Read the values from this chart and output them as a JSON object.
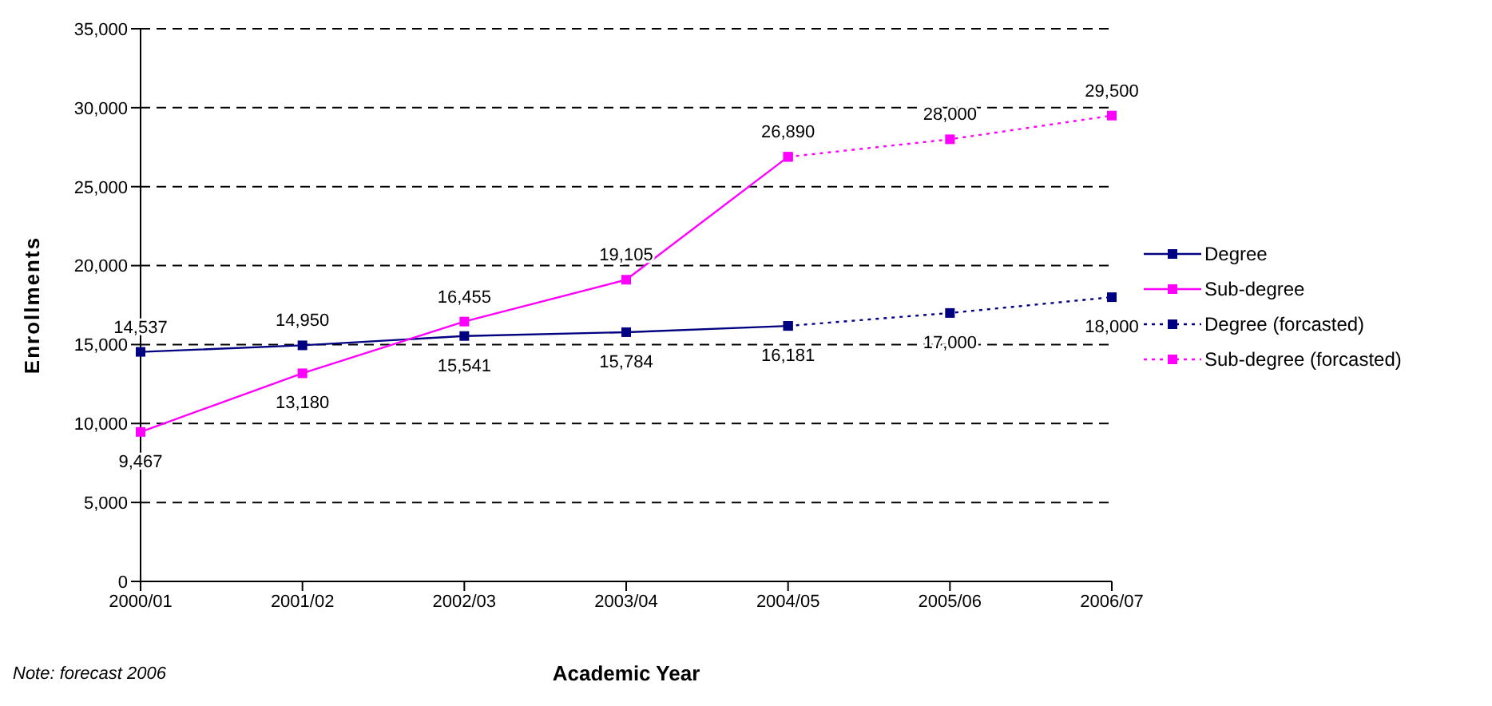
{
  "chart_data": {
    "type": "line",
    "xlabel": "Academic Year",
    "ylabel": "Enrollments",
    "categories": [
      "2000/01",
      "2001/02",
      "2002/03",
      "2003/04",
      "2004/05",
      "2005/06",
      "2006/07"
    ],
    "series": [
      {
        "name": "Degree",
        "color": "#000080",
        "line_style": "solid",
        "values": [
          14537,
          14950,
          15541,
          15784,
          16181,
          null,
          null
        ],
        "value_labels": [
          "14,537",
          "14,950",
          "15,541",
          "15,784",
          "16,181",
          null,
          null
        ]
      },
      {
        "name": "Sub-degree",
        "color": "#ff00ff",
        "line_style": "solid",
        "values": [
          9467,
          13180,
          16455,
          19105,
          26890,
          null,
          null
        ],
        "value_labels": [
          "9,467",
          "13,180",
          "16,455",
          "19,105",
          "26,890",
          null,
          null
        ]
      },
      {
        "name": "Degree (forcasted)",
        "color": "#000080",
        "line_style": "dotted",
        "values": [
          null,
          null,
          null,
          null,
          16181,
          17000,
          18000
        ],
        "value_labels": [
          null,
          null,
          null,
          null,
          null,
          "17,000",
          "18,000"
        ]
      },
      {
        "name": "Sub-degree (forcasted)",
        "color": "#ff00ff",
        "line_style": "dotted",
        "values": [
          null,
          null,
          null,
          null,
          26890,
          28000,
          29500
        ],
        "value_labels": [
          null,
          null,
          null,
          null,
          null,
          "28,000",
          "29,500"
        ]
      }
    ],
    "ylim": [
      0,
      35000
    ],
    "yticks": [
      0,
      {
        "value": 5000,
        "label": "5,000"
      },
      {
        "value": 10000,
        "label": "10,000"
      },
      {
        "value": 15000,
        "label": "15,000"
      },
      {
        "value": 20000,
        "label": "20,000"
      },
      {
        "value": 25000,
        "label": "25,000"
      },
      {
        "value": 30000,
        "label": "30,000"
      },
      {
        "value": 35000,
        "label": "35,000"
      }
    ],
    "grid": "y",
    "legend": "right",
    "marker": "square",
    "annotations": [
      "Note: forecast 2006"
    ]
  }
}
